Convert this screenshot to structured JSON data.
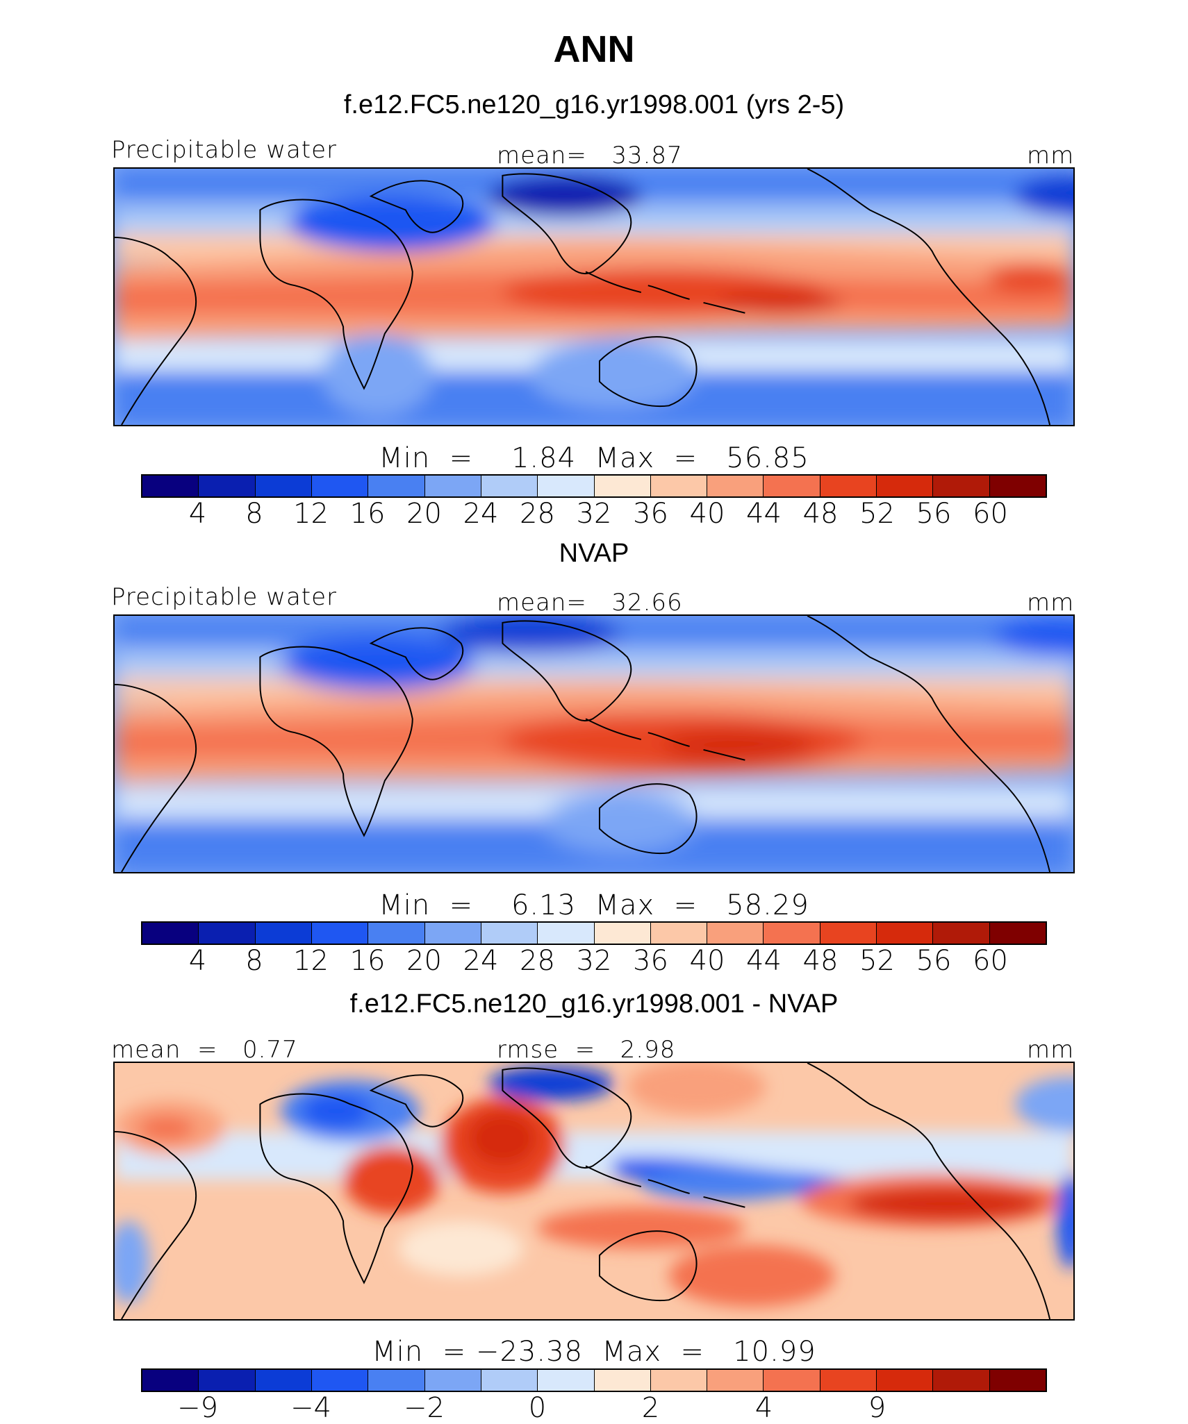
{
  "figure": {
    "title": "ANN"
  },
  "colors": {
    "scale": [
      "#08007f",
      "#0a1fb0",
      "#0c3cd6",
      "#1f57f2",
      "#4980f2",
      "#7ca6f5",
      "#b0ccf8",
      "#d8e8fc",
      "#fde8d4",
      "#fcc8a8",
      "#f9a07c",
      "#f47250",
      "#e84420",
      "#d62a0c",
      "#b01a08",
      "#7f0000"
    ]
  },
  "panels": [
    {
      "subtitle": "f.e12.FC5.ne120_g16.yr1998.001 (yrs 2-5)",
      "left_label": "Precipitable water",
      "center_label": "mean=   33.87",
      "right_label": "mm",
      "stats": "Min  =    1.84  Max  =   56.85",
      "tick_labels": [
        "4",
        "8",
        "12",
        "16",
        "20",
        "24",
        "28",
        "32",
        "36",
        "40",
        "44",
        "48",
        "52",
        "56",
        "60"
      ]
    },
    {
      "subtitle": "NVAP",
      "left_label": "Precipitable water",
      "center_label": "mean=   32.66",
      "right_label": "mm",
      "stats": "Min  =    6.13  Max  =   58.29",
      "tick_labels": [
        "4",
        "8",
        "12",
        "16",
        "20",
        "24",
        "28",
        "32",
        "36",
        "40",
        "44",
        "48",
        "52",
        "56",
        "60"
      ]
    },
    {
      "subtitle": "f.e12.FC5.ne120_g16.yr1998.001 - NVAP",
      "left_label": "mean  =   0.77",
      "center_label": "rmse  =   2.98",
      "right_label": "mm",
      "stats": "Min  = −23.38  Max  =   10.99",
      "tick_labels": [
        "−9",
        "",
        "−4",
        "",
        "−2",
        "",
        "0",
        "",
        "2",
        "",
        "4",
        "",
        "9",
        ""
      ]
    }
  ],
  "chart_data": [
    {
      "type": "heatmap",
      "title": "f.e12.FC5.ne120_g16.yr1998.001 (yrs 2-5)",
      "variable": "Precipitable water",
      "units": "mm",
      "mean": 33.87,
      "min": 1.84,
      "max": 56.85,
      "levels": [
        4,
        8,
        12,
        16,
        20,
        24,
        28,
        32,
        36,
        40,
        44,
        48,
        52,
        56,
        60
      ]
    },
    {
      "type": "heatmap",
      "title": "NVAP",
      "variable": "Precipitable water",
      "units": "mm",
      "mean": 32.66,
      "min": 6.13,
      "max": 58.29,
      "levels": [
        4,
        8,
        12,
        16,
        20,
        24,
        28,
        32,
        36,
        40,
        44,
        48,
        52,
        56,
        60
      ]
    },
    {
      "type": "heatmap",
      "title": "f.e12.FC5.ne120_g16.yr1998.001 - NVAP",
      "units": "mm",
      "mean": 0.77,
      "rmse": 2.98,
      "min": -23.38,
      "max": 10.99,
      "levels": [
        -9,
        -4,
        -2,
        0,
        2,
        4,
        9
      ]
    }
  ]
}
